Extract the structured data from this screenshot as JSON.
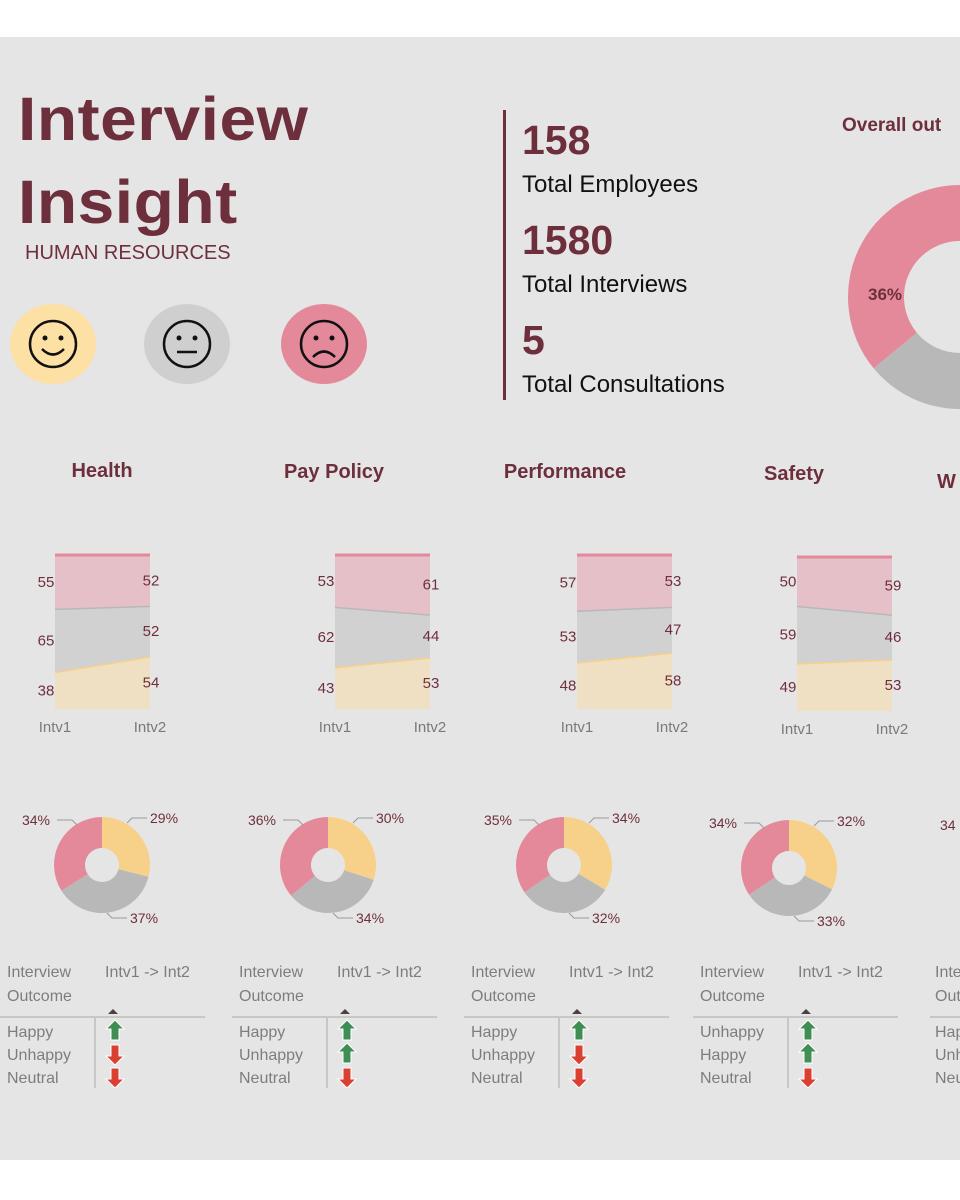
{
  "header": {
    "title_line1": "Interview",
    "title_line2": "Insight",
    "subtitle": "HUMAN RESOURCES"
  },
  "faces": [
    {
      "name": "happy-face-icon",
      "glyph": "☺",
      "bg": "#fde0a4"
    },
    {
      "name": "neutral-face-icon",
      "glyph": "😐",
      "bg": "#cfcfcf"
    },
    {
      "name": "unhappy-face-icon",
      "glyph": "☹",
      "bg": "#e4899a"
    }
  ],
  "kpis": [
    {
      "value": "158",
      "label": "Total Employees"
    },
    {
      "value": "1580",
      "label": "Total Interviews"
    },
    {
      "value": "5",
      "label": "Total Consultations"
    }
  ],
  "overall": {
    "title": "Overall out",
    "label": "36%"
  },
  "colors": {
    "happy": "#f7d08a",
    "neutral": "#b9b8b8",
    "unhappy": "#e4899a",
    "happy_fill": "#efe0c4",
    "neutral_fill": "#d2d1d1",
    "unhappy_fill": "#e5c0c8",
    "brand": "#6e2f3c",
    "arrow_up": "#3e8e55",
    "arrow_down": "#d9402f"
  },
  "chart_data": [
    {
      "type": "area",
      "title": "Health",
      "x": [
        "Intv1",
        "Intv2"
      ],
      "series": [
        {
          "name": "Happy",
          "values": [
            38,
            54
          ]
        },
        {
          "name": "Neutral",
          "values": [
            65,
            52
          ]
        },
        {
          "name": "Unhappy",
          "values": [
            55,
            52
          ]
        }
      ],
      "donut": {
        "unhappy": "34%",
        "happy": "29%",
        "neutral": "37%",
        "values": [
          34,
          29,
          37
        ]
      },
      "table": {
        "col1_header": "Interview",
        "col1_header2": "Outcome",
        "col2_header": "Intv1 -> Int2",
        "rows": [
          {
            "label": "Happy",
            "trend": "up"
          },
          {
            "label": "Unhappy",
            "trend": "down"
          },
          {
            "label": "Neutral",
            "trend": "down"
          }
        ]
      }
    },
    {
      "type": "area",
      "title": "Pay Policy",
      "x": [
        "Intv1",
        "Intv2"
      ],
      "series": [
        {
          "name": "Happy",
          "values": [
            43,
            53
          ]
        },
        {
          "name": "Neutral",
          "values": [
            62,
            44
          ]
        },
        {
          "name": "Unhappy",
          "values": [
            53,
            61
          ]
        }
      ],
      "donut": {
        "unhappy": "36%",
        "happy": "30%",
        "neutral": "34%",
        "values": [
          36,
          30,
          34
        ]
      },
      "table": {
        "col1_header": "Interview",
        "col1_header2": "Outcome",
        "col2_header": "Intv1 -> Int2",
        "rows": [
          {
            "label": "Happy",
            "trend": "up"
          },
          {
            "label": "Unhappy",
            "trend": "up"
          },
          {
            "label": "Neutral",
            "trend": "down"
          }
        ]
      }
    },
    {
      "type": "area",
      "title": "Performance",
      "x": [
        "Intv1",
        "Intv2"
      ],
      "series": [
        {
          "name": "Happy",
          "values": [
            48,
            58
          ]
        },
        {
          "name": "Neutral",
          "values": [
            53,
            47
          ]
        },
        {
          "name": "Unhappy",
          "values": [
            57,
            53
          ]
        }
      ],
      "donut": {
        "unhappy": "35%",
        "happy": "34%",
        "neutral": "32%",
        "values": [
          35,
          34,
          32
        ]
      },
      "table": {
        "col1_header": "Interview",
        "col1_header2": "Outcome",
        "col2_header": "Intv1 -> Int2",
        "rows": [
          {
            "label": "Happy",
            "trend": "up"
          },
          {
            "label": "Unhappy",
            "trend": "down"
          },
          {
            "label": "Neutral",
            "trend": "down"
          }
        ]
      }
    },
    {
      "type": "area",
      "title": "Safety",
      "x": [
        "Intv1",
        "Intv2"
      ],
      "series": [
        {
          "name": "Happy",
          "values": [
            49,
            53
          ]
        },
        {
          "name": "Neutral",
          "values": [
            59,
            46
          ]
        },
        {
          "name": "Unhappy",
          "values": [
            50,
            59
          ]
        }
      ],
      "donut": {
        "unhappy": "34%",
        "happy": "32%",
        "neutral": "33%",
        "values": [
          34,
          32,
          33
        ]
      },
      "table": {
        "col1_header": "Interview",
        "col1_header2": "Outcome",
        "col2_header": "Intv1 -> Int2",
        "rows": [
          {
            "label": "Unhappy",
            "trend": "up"
          },
          {
            "label": "Happy",
            "trend": "up"
          },
          {
            "label": "Neutral",
            "trend": "down"
          }
        ]
      }
    }
  ],
  "partial_panel": {
    "title_fragment": "W",
    "donut_label": "34",
    "table_labels": [
      "Inte",
      "Out",
      "Hap",
      "Unh",
      "Neu"
    ]
  }
}
